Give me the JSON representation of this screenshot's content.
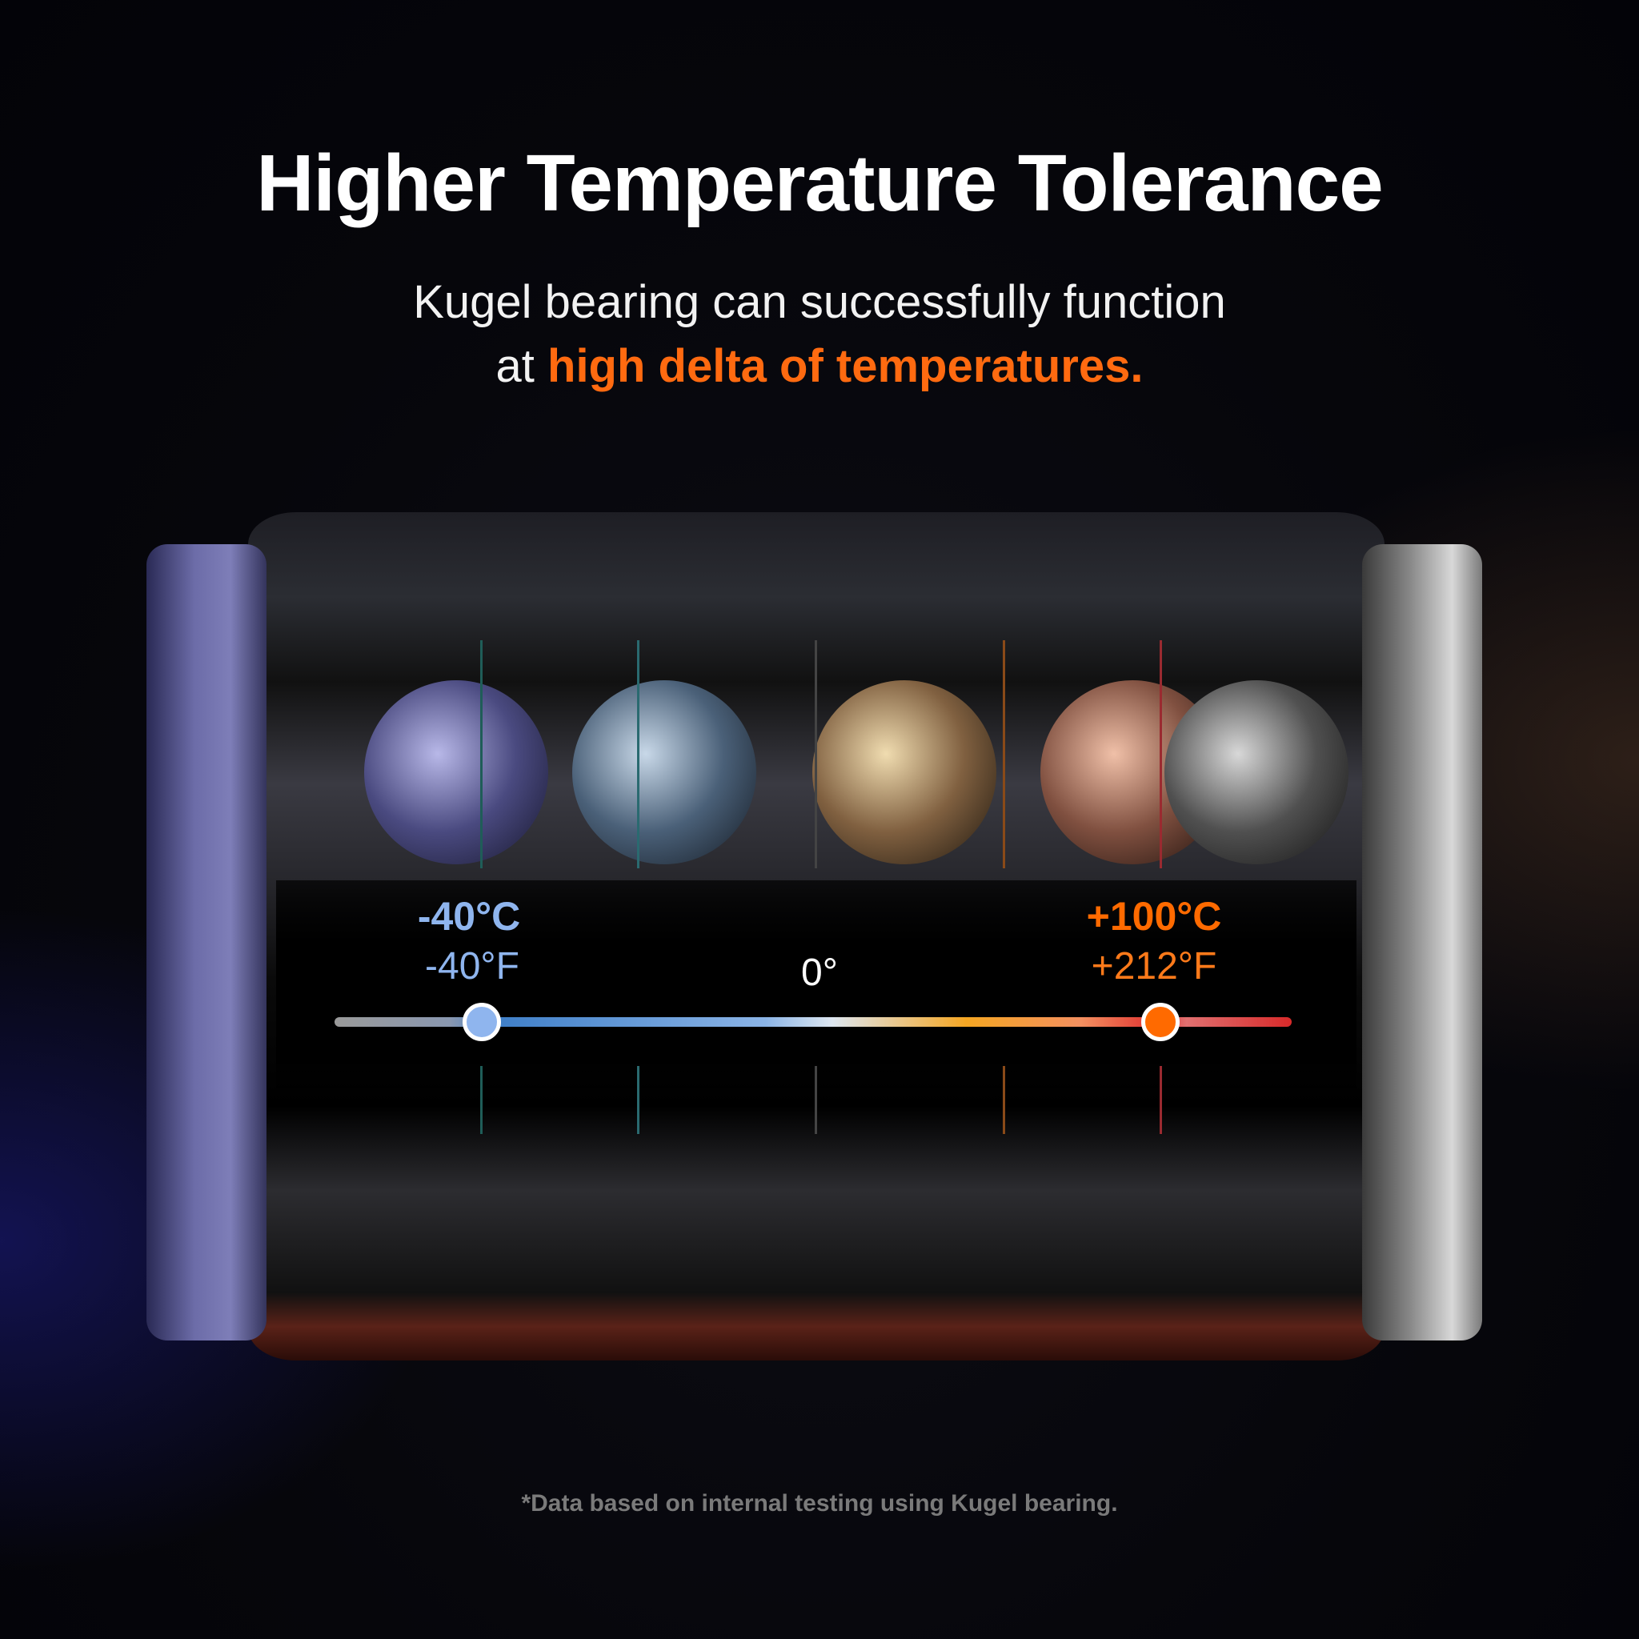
{
  "title": "Higher Temperature Tolerance",
  "subtitle": {
    "line1": "Kugel bearing can successfully function",
    "line2_prefix": "at ",
    "line2_highlight": "high delta of temperatures."
  },
  "scale": {
    "min": {
      "celsius": "-40°C",
      "fahrenheit": "-40°F",
      "color": "#8fb5ee"
    },
    "zero": {
      "label": "0°"
    },
    "max": {
      "celsius": "+100°C",
      "fahrenheit": "+212°F",
      "color": "#ff6a00"
    }
  },
  "footnote": "*Data based on internal testing using Kugel bearing.",
  "colors": {
    "accent": "#ff6a10",
    "cold": "#8fb5ee",
    "hot": "#ff6a00"
  }
}
